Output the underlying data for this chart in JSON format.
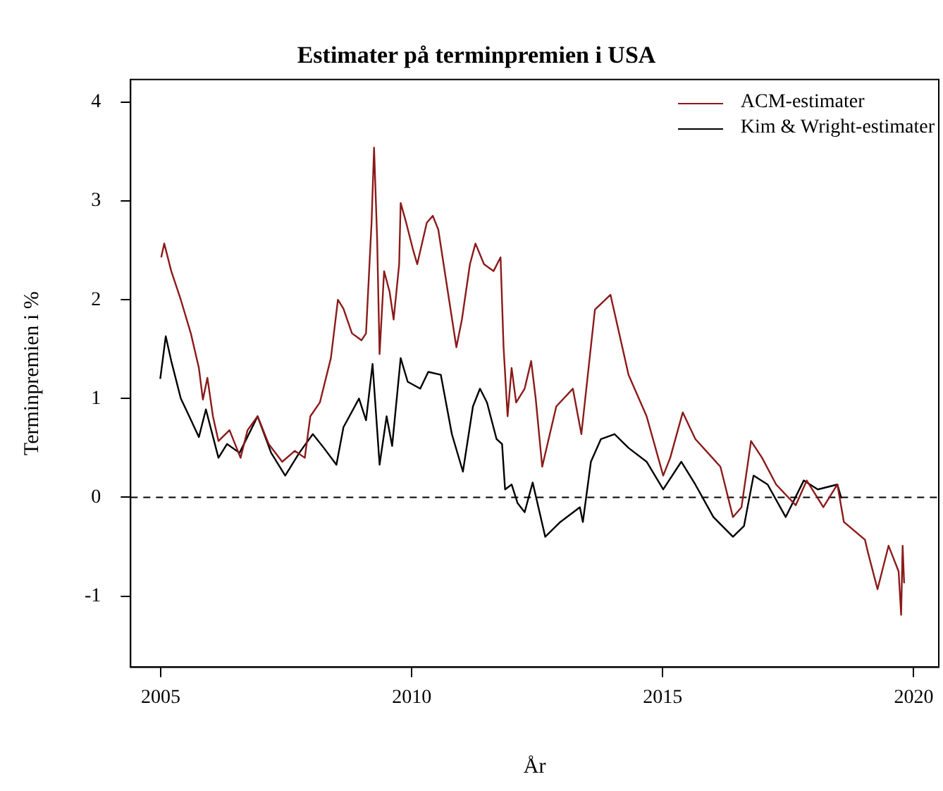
{
  "chart_data": {
    "type": "line",
    "title": "Estimater på terminpremien i USA",
    "xlabel": "År",
    "ylabel": "Terminpremien i %",
    "xlim": [
      2004.4,
      2020.5
    ],
    "xticks": [
      2005,
      2010,
      2015,
      2020
    ],
    "ylim": [
      -1.72,
      4.23
    ],
    "yticks": [
      -1,
      0,
      1,
      2,
      3,
      4
    ],
    "grid": false,
    "legend": "top right",
    "marker": "none",
    "line_style": "solid",
    "ref_lines": [
      {
        "axis": "y",
        "value": 0,
        "line_style": "dashed",
        "color": "#000000"
      }
    ],
    "series": [
      {
        "name": "ACM-estimater",
        "color": "#8b1a1a",
        "x": [
          2005.01,
          2005.07,
          2005.21,
          2005.4,
          2005.6,
          2005.76,
          2005.84,
          2005.93,
          2006.04,
          2006.15,
          2006.37,
          2006.59,
          2006.73,
          2006.93,
          2007.15,
          2007.42,
          2007.67,
          2007.87,
          2007.98,
          2008.17,
          2008.39,
          2008.53,
          2008.64,
          2008.81,
          2009.0,
          2009.09,
          2009.2,
          2009.25,
          2009.31,
          2009.36,
          2009.45,
          2009.56,
          2009.64,
          2009.75,
          2009.78,
          2009.89,
          2010.03,
          2010.11,
          2010.3,
          2010.42,
          2010.53,
          2010.72,
          2010.89,
          2011.0,
          2011.16,
          2011.27,
          2011.44,
          2011.63,
          2011.77,
          2011.83,
          2011.91,
          2011.99,
          2012.08,
          2012.25,
          2012.38,
          2012.47,
          2012.6,
          2012.88,
          2013.21,
          2013.38,
          2013.65,
          2013.96,
          2014.32,
          2014.68,
          2015.01,
          2015.15,
          2015.4,
          2015.65,
          2016.15,
          2016.4,
          2016.57,
          2016.76,
          2016.98,
          2017.26,
          2017.65,
          2017.87,
          2018.2,
          2018.48,
          2018.61,
          2019.03,
          2019.09,
          2019.28,
          2019.5,
          2019.7,
          2019.75,
          2019.78,
          2019.81
        ],
        "values": [
          2.43,
          2.57,
          2.29,
          2.0,
          1.66,
          1.31,
          0.99,
          1.21,
          0.82,
          0.57,
          0.68,
          0.4,
          0.68,
          0.82,
          0.54,
          0.36,
          0.47,
          0.4,
          0.82,
          0.96,
          1.41,
          2.0,
          1.91,
          1.66,
          1.59,
          1.66,
          2.78,
          3.54,
          2.64,
          1.45,
          2.29,
          2.08,
          1.8,
          2.36,
          2.98,
          2.78,
          2.5,
          2.36,
          2.78,
          2.85,
          2.71,
          2.08,
          1.52,
          1.8,
          2.36,
          2.57,
          2.36,
          2.29,
          2.43,
          1.52,
          0.82,
          1.31,
          0.96,
          1.1,
          1.38,
          1.0,
          0.31,
          0.92,
          1.1,
          0.64,
          1.9,
          2.05,
          1.24,
          0.82,
          0.22,
          0.4,
          0.86,
          0.59,
          0.31,
          -0.2,
          -0.1,
          0.57,
          0.4,
          0.13,
          -0.08,
          0.17,
          -0.1,
          0.13,
          -0.25,
          -0.43,
          -0.56,
          -0.93,
          -0.49,
          -0.75,
          -1.19,
          -0.49,
          -0.87
        ]
      },
      {
        "name": "Kim & Wright-estimater",
        "color": "#000000",
        "x": [
          2004.99,
          2005.1,
          2005.21,
          2005.4,
          2005.54,
          2005.76,
          2005.9,
          2006.15,
          2006.32,
          2006.57,
          2006.93,
          2007.2,
          2007.48,
          2007.76,
          2008.03,
          2008.25,
          2008.5,
          2008.64,
          2008.95,
          2009.09,
          2009.22,
          2009.36,
          2009.5,
          2009.61,
          2009.78,
          2009.92,
          2010.17,
          2010.33,
          2010.58,
          2010.8,
          2011.02,
          2011.22,
          2011.36,
          2011.5,
          2011.69,
          2011.8,
          2011.86,
          2011.99,
          2012.11,
          2012.25,
          2012.41,
          2012.66,
          2012.96,
          2013.35,
          2013.41,
          2013.57,
          2013.77,
          2014.04,
          2014.32,
          2014.68,
          2015.01,
          2015.37,
          2015.65,
          2016.01,
          2016.4,
          2016.62,
          2016.81,
          2017.09,
          2017.45,
          2017.81,
          2018.09,
          2018.48,
          2018.56
        ],
        "values": [
          1.2,
          1.63,
          1.38,
          1.0,
          0.85,
          0.61,
          0.89,
          0.4,
          0.54,
          0.45,
          0.82,
          0.45,
          0.22,
          0.45,
          0.64,
          0.5,
          0.33,
          0.71,
          1.0,
          0.78,
          1.35,
          0.33,
          0.82,
          0.52,
          1.41,
          1.17,
          1.1,
          1.27,
          1.24,
          0.64,
          0.26,
          0.92,
          1.1,
          0.96,
          0.59,
          0.54,
          0.08,
          0.13,
          -0.06,
          -0.15,
          0.15,
          -0.4,
          -0.25,
          -0.1,
          -0.25,
          0.36,
          0.59,
          0.64,
          0.5,
          0.36,
          0.08,
          0.36,
          0.13,
          -0.2,
          -0.4,
          -0.29,
          0.22,
          0.13,
          -0.2,
          0.17,
          0.08,
          0.13,
          -0.01
        ]
      }
    ]
  }
}
